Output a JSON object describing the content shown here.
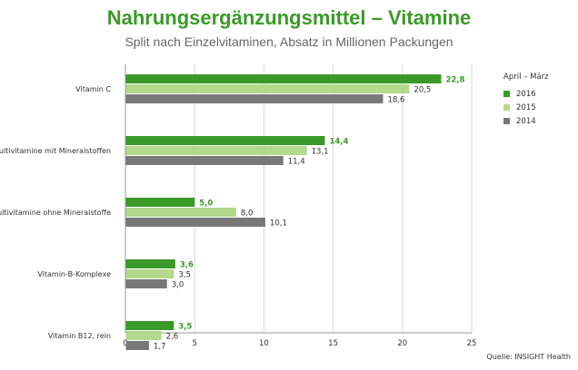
{
  "header": {
    "title": "Nahrungsergänzungsmittel – Vitamine",
    "subtitle": "Split nach Einzelvitaminen, Absatz in Millionen Packungen"
  },
  "legend": {
    "title": "April – März",
    "placement": "right"
  },
  "source": "Quelle: INSIGHT Health",
  "colors": {
    "2016": "#3a9a27",
    "2015": "#b2d98c",
    "2014": "#787878",
    "title": "#3a9a27",
    "value_2016_label": "#3a9a27"
  },
  "chart_data": {
    "type": "bar",
    "orientation": "horizontal",
    "title": "Nahrungsergänzungsmittel – Vitamine",
    "subtitle": "Split nach Einzelvitaminen, Absatz in Millionen Packungen",
    "categories": [
      "Vitamin C",
      "Multivitamine mit Mineralstoffen",
      "Multivitamine ohne Mineralstoffe",
      "Vitamin-B-Komplexe",
      "Vitamin B12, rein"
    ],
    "series": [
      {
        "name": "2016",
        "values": [
          22.8,
          14.4,
          5.0,
          3.6,
          3.5
        ],
        "labels": [
          "22,8",
          "14,4",
          "5,0",
          "3,6",
          "3,5"
        ]
      },
      {
        "name": "2015",
        "values": [
          20.5,
          13.1,
          8.0,
          3.5,
          2.6
        ],
        "labels": [
          "20,5",
          "13,1",
          "8,0",
          "3,5",
          "2,6"
        ]
      },
      {
        "name": "2014",
        "values": [
          18.6,
          11.4,
          10.1,
          3.0,
          1.7
        ],
        "labels": [
          "18,6",
          "11,4",
          "10,1",
          "3,0",
          "1,7"
        ]
      }
    ],
    "xlim": [
      0,
      25
    ],
    "xticks": [
      0,
      5,
      10,
      15,
      20,
      25
    ],
    "grid": true,
    "legend_title": "April – März"
  }
}
